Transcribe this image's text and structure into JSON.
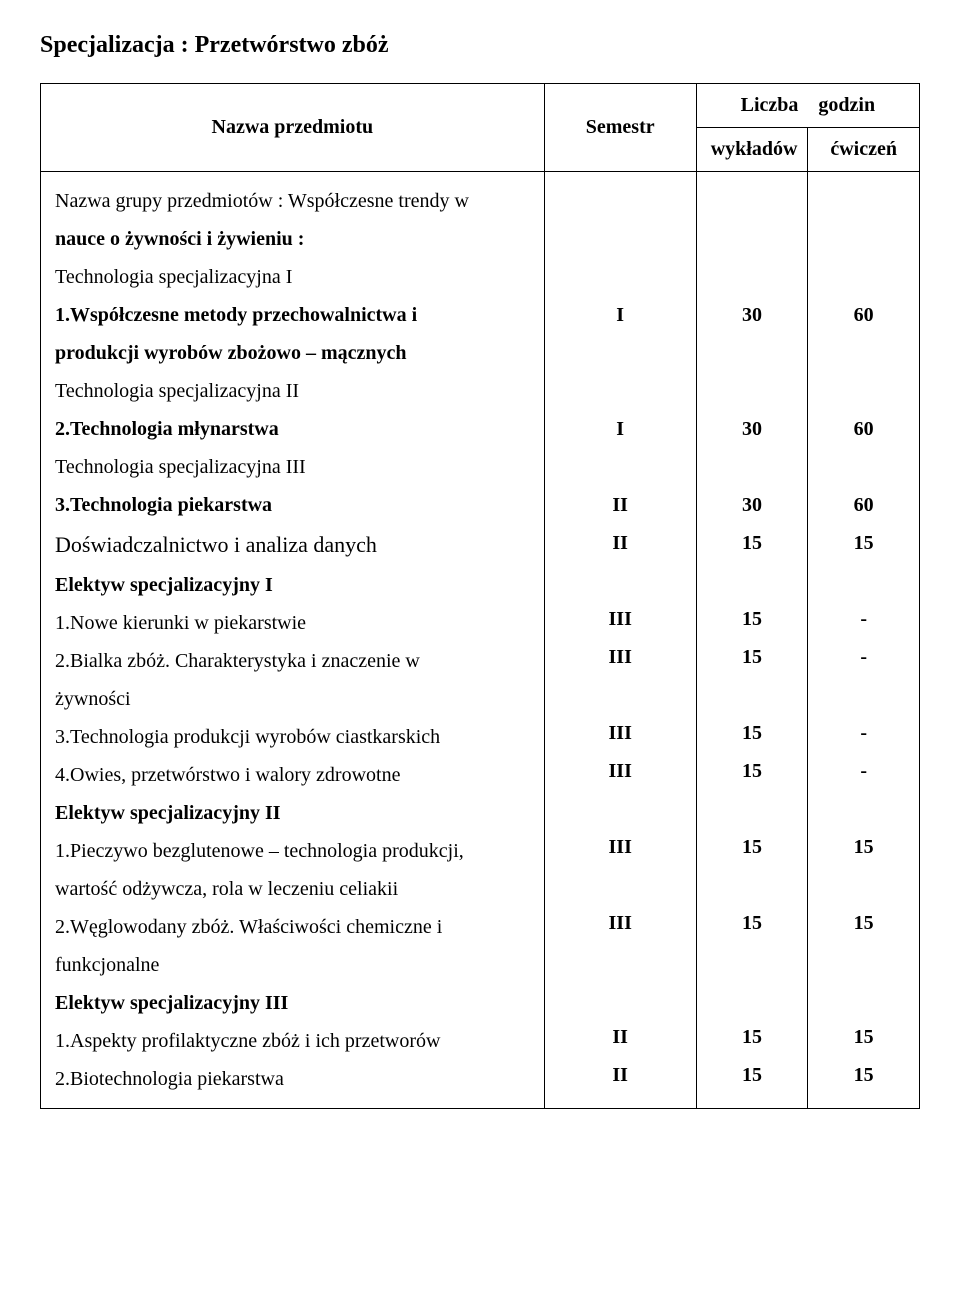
{
  "title": "Specjalizacja : Przetwórstwo zbóż",
  "header": {
    "name": "Nazwa przedmiotu",
    "semester": "Semestr",
    "hours": "Liczba    godzin",
    "lectures": "wykładów",
    "exercises": "ćwiczeń"
  },
  "body": {
    "group_line": "Nazwa grupy przedmiotów : Współczesne trendy w",
    "group_line2": "nauce o żywności i żywieniu :",
    "tech_spec1": "Technologia  specjalizacyjna I",
    "item1": "1.Współczesne metody przechowalnictwa i",
    "item1b": "produkcji wyrobów zbożowo – mącznych",
    "tech_spec2": "Technologia  specjalizacyjna II",
    "item2": "2.Technologia młynarstwa",
    "tech_spec3": "Technologia  specjalizacyjna III",
    "item3": "3.Technologia piekarstwa",
    "dos": "Doświadczalnictwo i analiza danych",
    "elek1": "Elektyw specjalizacyjny I",
    "e1_1": "1.Nowe kierunki w piekarstwie",
    "e1_2": "2.Bialka zbóż. Charakterystyka i znaczenie w",
    "e1_2b": "żywności",
    "e1_3": "3.Technologia produkcji wyrobów ciastkarskich",
    "e1_4": "4.Owies, przetwórstwo i walory zdrowotne",
    "elek2": "Elektyw specjalizacyjny II",
    "e2_1": "1.Pieczywo bezglutenowe – technologia produkcji,",
    "e2_1b": "wartość odżywcza, rola w leczeniu celiakii",
    "e2_2": "2.Węglowodany zbóż. Właściwości chemiczne i",
    "e2_2b": "funkcjonalne",
    "elek3": "Elektyw specjalizacyjny III",
    "e3_1": "1.Aspekty profilaktyczne zbóż i ich przetworów",
    "e3_2": "2.Biotechnologia piekarstwa"
  },
  "sem": {
    "v1": "I",
    "v2": "I",
    "v3": "II",
    "v4": "II",
    "v5": "III",
    "v6": "III",
    "v7": "III",
    "v8": "III",
    "v9": "III",
    "v10": "III",
    "v11": "II",
    "v12": "II"
  },
  "wyk": {
    "v1": "30",
    "v2": "30",
    "v3": "30",
    "v4": "15",
    "v5": "15",
    "v6": "15",
    "v7": "15",
    "v8": "15",
    "v9": "15",
    "v10": "15",
    "v11": "15",
    "v12": "15"
  },
  "cw": {
    "v1": "60",
    "v2": "60",
    "v3": "60",
    "v4": "15",
    "v5": "-",
    "v6": "-",
    "v7": "-",
    "v8": "-",
    "v9": "15",
    "v10": "15",
    "v11": "15",
    "v12": "15"
  }
}
